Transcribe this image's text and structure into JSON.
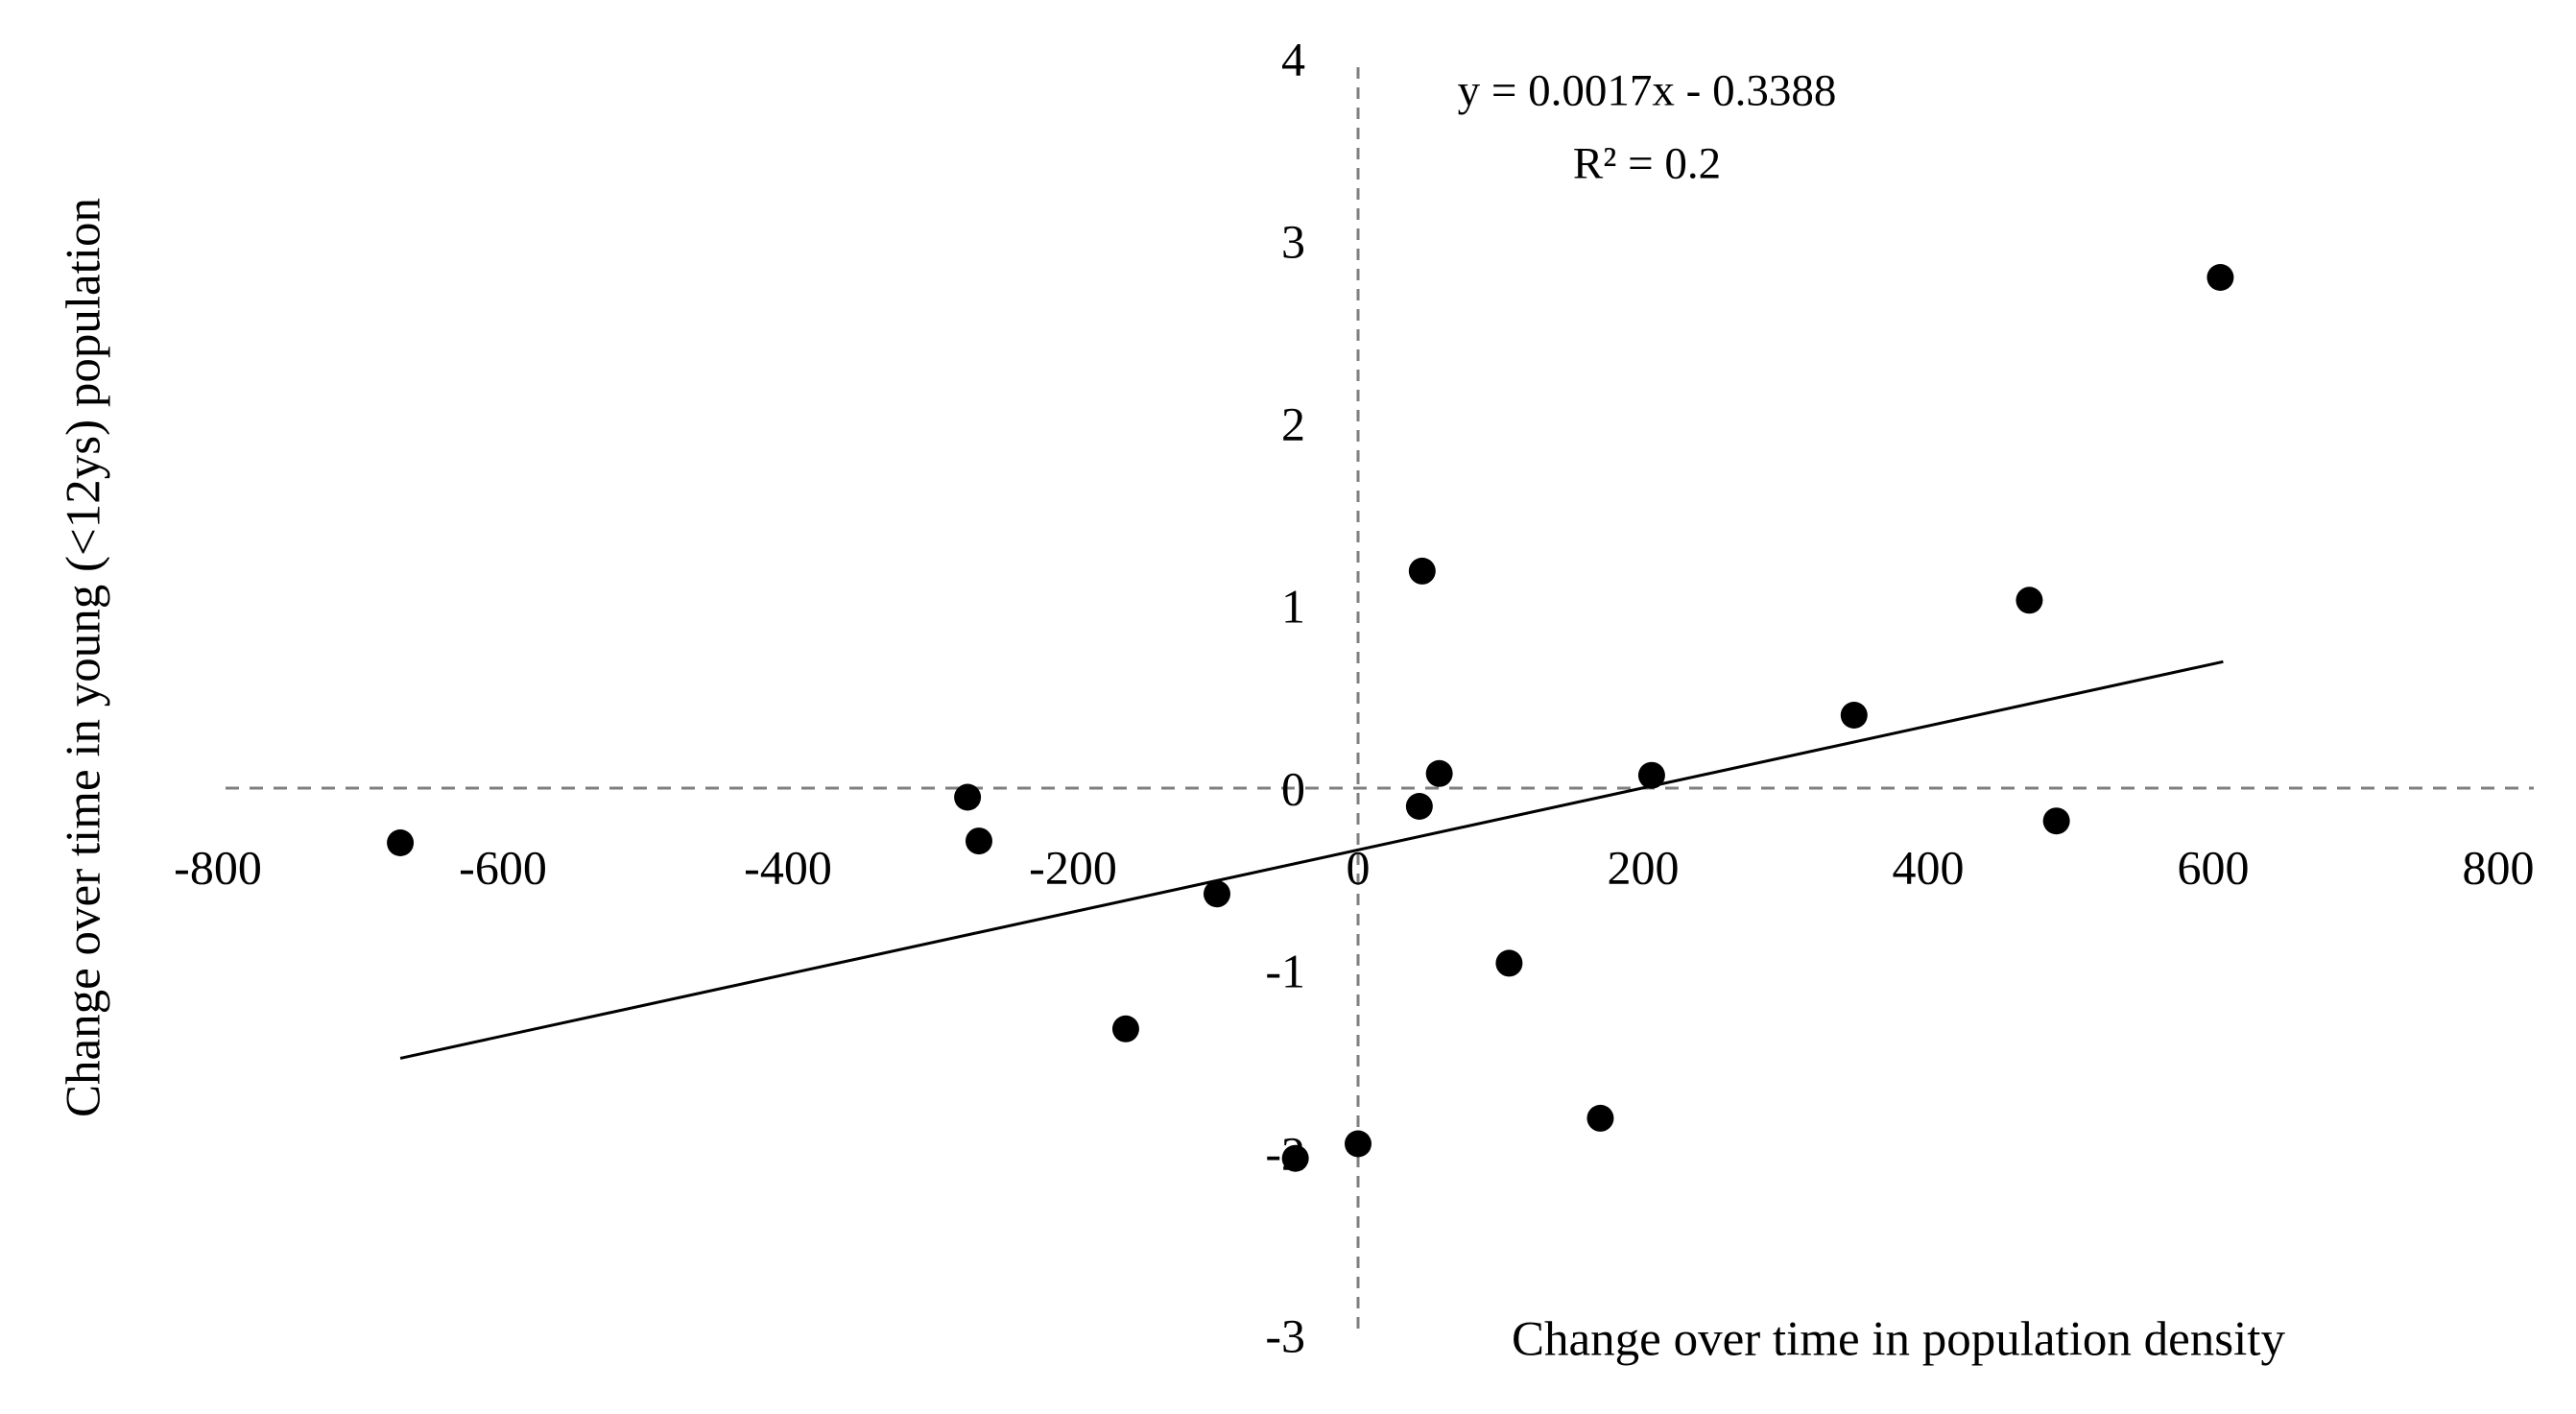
{
  "figure": {
    "background": "#ffffff"
  },
  "chart_data": {
    "type": "scatter",
    "title": "",
    "xlabel": "Change over time in population density",
    "ylabel": "Change over time in young (<12ys) population",
    "xlim": [
      -800,
      800
    ],
    "ylim": [
      -3,
      4
    ],
    "x_ticks": [
      -800,
      -600,
      -400,
      -200,
      0,
      200,
      400,
      600,
      800
    ],
    "x_tick_labels": [
      "-800",
      "-600",
      "-400",
      "-200",
      "0",
      "200",
      "400",
      "600",
      "800"
    ],
    "y_ticks": [
      4,
      3,
      2,
      1,
      0,
      -1,
      -2,
      -3
    ],
    "y_tick_labels": [
      "4",
      "3",
      "2",
      "1",
      "0",
      "-1",
      "-2",
      "-3"
    ],
    "grid": "dashed zero lines only",
    "legend_position": "none",
    "points": [
      {
        "x": -672,
        "y": -0.3
      },
      {
        "x": -274,
        "y": -0.05
      },
      {
        "x": -266,
        "y": -0.29
      },
      {
        "x": -163,
        "y": -1.32
      },
      {
        "x": -99,
        "y": -0.58
      },
      {
        "x": -44,
        "y": -2.03
      },
      {
        "x": 0,
        "y": -1.95
      },
      {
        "x": 43,
        "y": -0.1
      },
      {
        "x": 45,
        "y": 1.19
      },
      {
        "x": 57,
        "y": 0.08
      },
      {
        "x": 106,
        "y": -0.96
      },
      {
        "x": 170,
        "y": -1.81
      },
      {
        "x": 206,
        "y": 0.07
      },
      {
        "x": 348,
        "y": 0.4
      },
      {
        "x": 471,
        "y": 1.03
      },
      {
        "x": 490,
        "y": -0.18
      },
      {
        "x": 605,
        "y": 2.8
      }
    ],
    "trendline": {
      "slope": 0.0017,
      "intercept": -0.3388,
      "x_start": -672,
      "x_end": 607
    },
    "annotation": {
      "equation": "y = 0.0017x - 0.3388",
      "r_squared": "R² = 0.2"
    },
    "colors": {
      "point": "#000000",
      "trendline": "#000000",
      "zero_lines": "#7f7f7f",
      "text": "#000000",
      "background": "#ffffff"
    }
  }
}
